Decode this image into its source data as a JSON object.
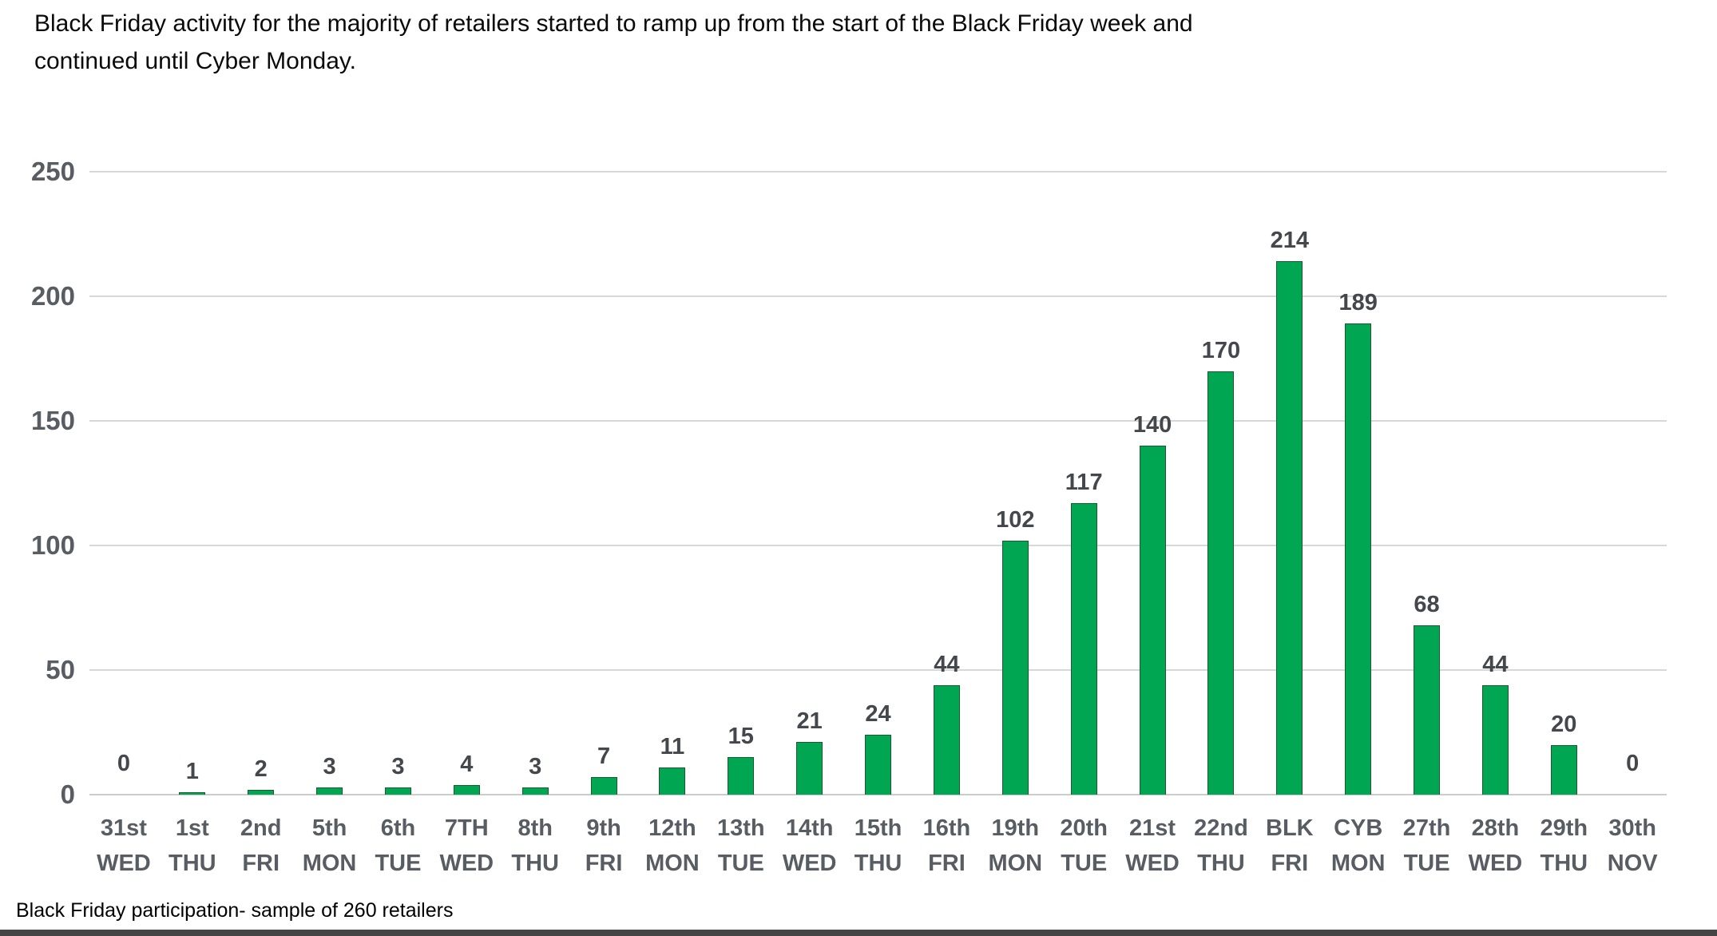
{
  "title": {
    "lines": [
      "Black Friday activity for the majority of retailers started to ramp up from the start of the Black Friday week and",
      "continued until Cyber Monday."
    ]
  },
  "footer": {
    "text": "Black Friday participation- sample of 260 retailers"
  },
  "chart_data": {
    "type": "bar",
    "title": "Black Friday activity for the majority of retailers started to ramp up from the start of the Black Friday week and continued until Cyber Monday.",
    "caption": "Black Friday participation- sample of 260 retailers",
    "categories": [
      "31st WED",
      "1st THU",
      "2nd FRI",
      "5th MON",
      "6th TUE",
      "7TH WED",
      "8th THU",
      "9th FRI",
      "12th MON",
      "13th TUE",
      "14th WED",
      "15th THU",
      "16th FRI",
      "19th MON",
      "20th TUE",
      "21st WED",
      "22nd THU",
      "BLK FRI",
      "CYB MON",
      "27th TUE",
      "28th WED",
      "29th THU",
      "30th NOV"
    ],
    "xtick_lines": [
      [
        "31st",
        "WED"
      ],
      [
        "1st",
        "THU"
      ],
      [
        "2nd",
        "FRI"
      ],
      [
        "5th",
        "MON"
      ],
      [
        "6th",
        "TUE"
      ],
      [
        "7TH",
        "WED"
      ],
      [
        "8th",
        "THU"
      ],
      [
        "9th",
        "FRI"
      ],
      [
        "12th",
        "MON"
      ],
      [
        "13th",
        "TUE"
      ],
      [
        "14th",
        "WED"
      ],
      [
        "15th",
        "THU"
      ],
      [
        "16th",
        "FRI"
      ],
      [
        "19th",
        "MON"
      ],
      [
        "20th",
        "TUE"
      ],
      [
        "21st",
        "WED"
      ],
      [
        "22nd",
        "THU"
      ],
      [
        "BLK",
        "FRI"
      ],
      [
        "CYB",
        "MON"
      ],
      [
        "27th",
        "TUE"
      ],
      [
        "28th",
        "WED"
      ],
      [
        "29th",
        "THU"
      ],
      [
        "30th",
        "NOV"
      ]
    ],
    "values": [
      0,
      1,
      2,
      3,
      3,
      4,
      3,
      7,
      11,
      15,
      21,
      24,
      44,
      102,
      117,
      140,
      170,
      214,
      189,
      68,
      44,
      20,
      0
    ],
    "xlabel": "",
    "ylabel": "",
    "ylim": [
      0,
      250
    ],
    "yticks": [
      0,
      50,
      100,
      150,
      200,
      250
    ],
    "grid": true,
    "legend_position": "none",
    "colors": {
      "bar_fill": "#00A651",
      "bar_border": "#1A5A2E",
      "value_label": "#44474C",
      "axis_label": "#585D63",
      "gridline": "#D8D8D8",
      "title_text": "#0A0A0A",
      "bottom_bar": "#454545"
    }
  }
}
